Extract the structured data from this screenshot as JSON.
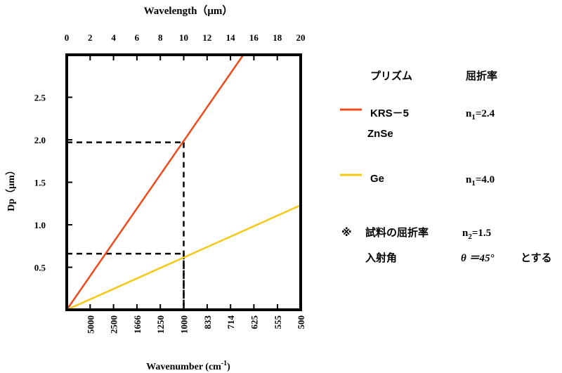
{
  "chart_data": {
    "type": "line",
    "title": "",
    "top_axis": {
      "label": "Wavelength（μm）",
      "ticks": [
        "0",
        "2",
        "4",
        "6",
        "8",
        "10",
        "12",
        "14",
        "16",
        "18",
        "20"
      ],
      "range": [
        0,
        20
      ]
    },
    "bottom_axis": {
      "label": "Wavenumber (cm",
      "label_sup": "-1",
      "label_tail": ")",
      "ticks": [
        "5000",
        "2500",
        "1666",
        "1250",
        "1000",
        "833",
        "714",
        "625",
        "555",
        "500"
      ]
    },
    "y_axis": {
      "label": "Dp（μm）",
      "ticks": [
        "0.5",
        "1.0",
        "1.5",
        "2.0",
        "2.5"
      ],
      "range": [
        0,
        3.0
      ]
    },
    "grid": false,
    "series": [
      {
        "name": "KRS−5 ZnSe",
        "color": "#f04a1c",
        "x": [
          0,
          15.1
        ],
        "y": [
          0,
          3.0
        ]
      },
      {
        "name": "Ge",
        "color": "#f5c814",
        "x": [
          0,
          20
        ],
        "y": [
          0,
          1.23
        ]
      }
    ],
    "reference_lines": [
      {
        "x": 10,
        "y": 1.97
      },
      {
        "x": 10,
        "y": 0.66
      }
    ],
    "legend": {
      "header_prism": "プリズム",
      "header_index": "屈折率",
      "entries": [
        {
          "line1": "KRS－5",
          "line2": "ZnSe",
          "index_main": "n",
          "index_sub": "1",
          "index_value": "=2.4",
          "color": "#f04a1c"
        },
        {
          "line1": "Ge",
          "line2": "",
          "index_main": "n",
          "index_sub": "1",
          "index_value": "=4.0",
          "color": "#f5c814"
        }
      ]
    },
    "notes": {
      "sample_mark": "※",
      "sample_label": "試料の屈折率",
      "sample_main": "n",
      "sample_sub": "2",
      "sample_value": "=1.5",
      "angle_label": "入射角",
      "angle_value": "θ ＝45°",
      "angle_suffix": "とする"
    }
  }
}
